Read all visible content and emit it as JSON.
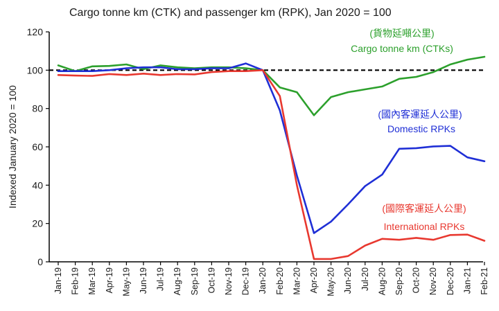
{
  "chart_data": {
    "type": "line",
    "title": "Cargo tonne km (CTK) and passenger km (RPK), Jan 2020 = 100",
    "ylabel": "Indexed January 2020 = 100",
    "xlabel": "",
    "ylim": [
      0,
      120
    ],
    "yticks": [
      0,
      20,
      40,
      60,
      80,
      100,
      120
    ],
    "grid": false,
    "reference_line": {
      "y": 100,
      "style": "dashed",
      "color": "#000000"
    },
    "categories": [
      "Jan-19",
      "Feb-19",
      "Mar-19",
      "Apr-19",
      "May-19",
      "Jun-19",
      "Jul-19",
      "Aug-19",
      "Sep-19",
      "Oct-19",
      "Nov-19",
      "Dec-19",
      "Jan-20",
      "Feb-20",
      "Mar-20",
      "Apr-20",
      "May-20",
      "Jun-20",
      "Jul-20",
      "Aug-20",
      "Sep-20",
      "Oct-20",
      "Nov-20",
      "Dec-20",
      "Jan-21",
      "Feb-21"
    ],
    "series": [
      {
        "name": "Cargo tonne km (CTKs)",
        "name_zh": "(貨物延噸公里)",
        "color": "#2ca02c",
        "values": [
          102.5,
          99.5,
          102,
          102.2,
          103,
          100.5,
          102.5,
          101.5,
          101,
          101.5,
          101.5,
          101,
          100,
          91,
          88.5,
          76.5,
          86,
          88.5,
          90,
          91.5,
          95.5,
          96.5,
          99,
          103,
          105.5,
          107
        ]
      },
      {
        "name": "Domestic RPKs",
        "name_zh": "(國內客運延人公里)",
        "color": "#1f2fd6",
        "values": [
          99.5,
          99.5,
          99.5,
          100,
          101,
          101.5,
          101.5,
          100.5,
          100.5,
          101,
          101,
          103.5,
          100,
          79,
          45,
          15,
          21,
          30,
          39.5,
          45.5,
          59,
          59.3,
          60.2,
          60.5,
          54.5,
          52.5
        ]
      },
      {
        "name": "International RPKs",
        "name_zh": "(國際客運延人公里)",
        "color": "#e8382f",
        "values": [
          97.5,
          97.2,
          97,
          98,
          97.5,
          98.2,
          97.5,
          98,
          97.8,
          99,
          99.5,
          99.5,
          100,
          86.5,
          40,
          1.5,
          1.5,
          3,
          8.5,
          12,
          11.5,
          12.5,
          11.5,
          14,
          14.2,
          11
        ]
      }
    ]
  }
}
